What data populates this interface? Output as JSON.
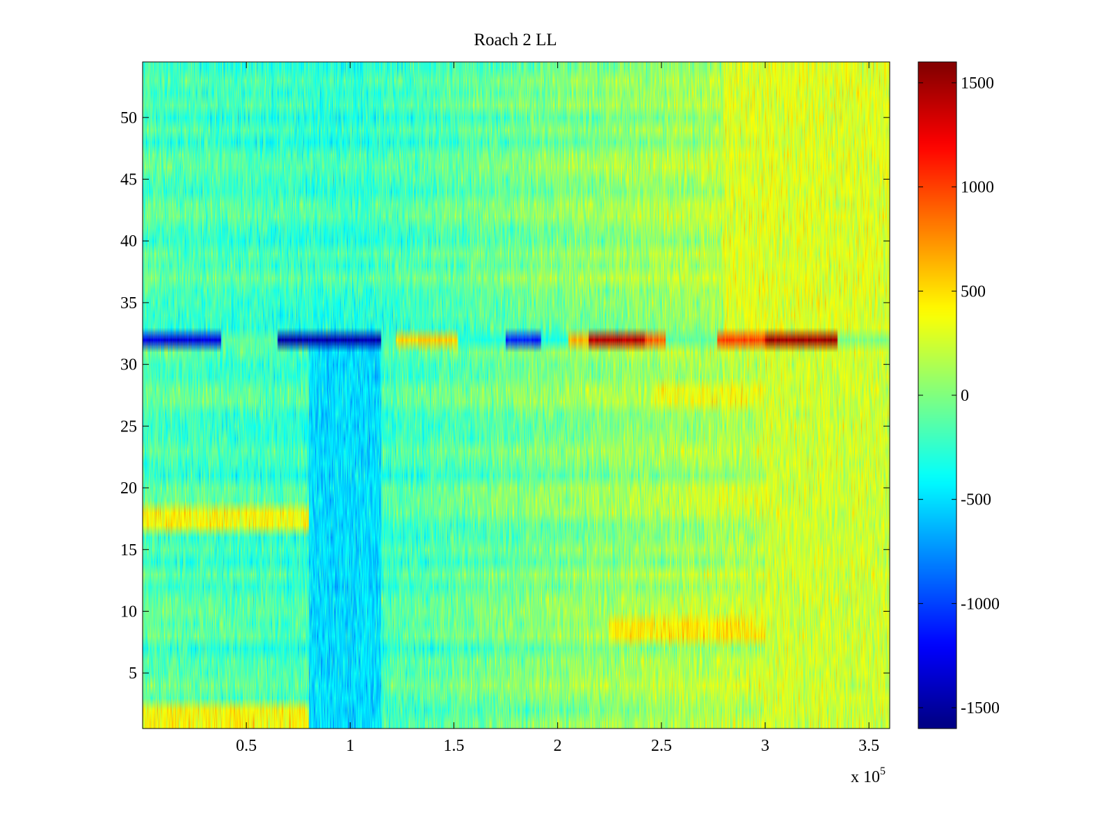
{
  "chart_data": {
    "type": "heatmap",
    "title": "Roach 2 LL",
    "xlabel": "",
    "ylabel": "",
    "x_exponent_label": "x 10",
    "x_exponent_power": "5",
    "xlim": [
      0,
      360000
    ],
    "ylim": [
      0.5,
      54.5
    ],
    "rows": 54,
    "x_ticks": [
      50000,
      100000,
      150000,
      200000,
      250000,
      300000,
      350000
    ],
    "x_tick_labels": [
      "0.5",
      "1",
      "1.5",
      "2",
      "2.5",
      "3",
      "3.5"
    ],
    "y_ticks": [
      5,
      10,
      15,
      20,
      25,
      30,
      35,
      40,
      45,
      50
    ],
    "y_tick_labels": [
      "5",
      "10",
      "15",
      "20",
      "25",
      "30",
      "35",
      "40",
      "45",
      "50"
    ],
    "colorbar": {
      "colormap": "jet",
      "clim": [
        -1600,
        1600
      ],
      "ticks": [
        1500,
        1000,
        500,
        0,
        -500,
        -1000,
        -1500
      ],
      "tick_labels": [
        "1500",
        "1000",
        "500",
        "0",
        "-500",
        "-1000",
        "-1500"
      ]
    },
    "regions": [
      {
        "rows": [
          32,
          32
        ],
        "x": [
          0,
          38000
        ],
        "value": -1300
      },
      {
        "rows": [
          32,
          32
        ],
        "x": [
          38000,
          65000
        ],
        "value": -100
      },
      {
        "rows": [
          32,
          32
        ],
        "x": [
          65000,
          115000
        ],
        "value": -1450
      },
      {
        "rows": [
          32,
          32
        ],
        "x": [
          115000,
          122000
        ],
        "value": -200
      },
      {
        "rows": [
          32,
          32
        ],
        "x": [
          122000,
          152000
        ],
        "value": 550
      },
      {
        "rows": [
          32,
          32
        ],
        "x": [
          152000,
          175000
        ],
        "value": -300
      },
      {
        "rows": [
          32,
          32
        ],
        "x": [
          175000,
          192000
        ],
        "value": -1100
      },
      {
        "rows": [
          32,
          32
        ],
        "x": [
          192000,
          205000
        ],
        "value": -300
      },
      {
        "rows": [
          32,
          32
        ],
        "x": [
          205000,
          215000
        ],
        "value": 650
      },
      {
        "rows": [
          32,
          32
        ],
        "x": [
          215000,
          242000
        ],
        "value": 1400
      },
      {
        "rows": [
          32,
          32
        ],
        "x": [
          242000,
          252000
        ],
        "value": 900
      },
      {
        "rows": [
          32,
          32
        ],
        "x": [
          252000,
          277000
        ],
        "value": -100
      },
      {
        "rows": [
          32,
          32
        ],
        "x": [
          277000,
          300000
        ],
        "value": 1000
      },
      {
        "rows": [
          32,
          32
        ],
        "x": [
          300000,
          335000
        ],
        "value": 1500
      },
      {
        "rows": [
          32,
          32
        ],
        "x": [
          335000,
          360000
        ],
        "value": 0
      },
      {
        "rows": [
          1,
          2
        ],
        "x": [
          0,
          80000
        ],
        "value": 400
      },
      {
        "rows": [
          17,
          18
        ],
        "x": [
          0,
          80000
        ],
        "value": 400
      },
      {
        "rows": [
          8,
          9
        ],
        "x": [
          225000,
          360000
        ],
        "value": 450
      },
      {
        "rows": [
          27,
          28
        ],
        "x": [
          245000,
          360000
        ],
        "value": 350
      },
      {
        "rows": [
          1,
          31
        ],
        "x": [
          80000,
          115000
        ],
        "value": -500
      },
      {
        "rows": [
          33,
          54
        ],
        "x": [
          280000,
          360000
        ],
        "value": 300
      },
      {
        "rows": [
          1,
          31
        ],
        "x": [
          300000,
          360000
        ],
        "value": 250
      }
    ],
    "background_trend": {
      "x": [
        0,
        100000,
        200000,
        300000,
        360000
      ],
      "value": [
        -150,
        -250,
        0,
        200,
        300
      ]
    }
  }
}
